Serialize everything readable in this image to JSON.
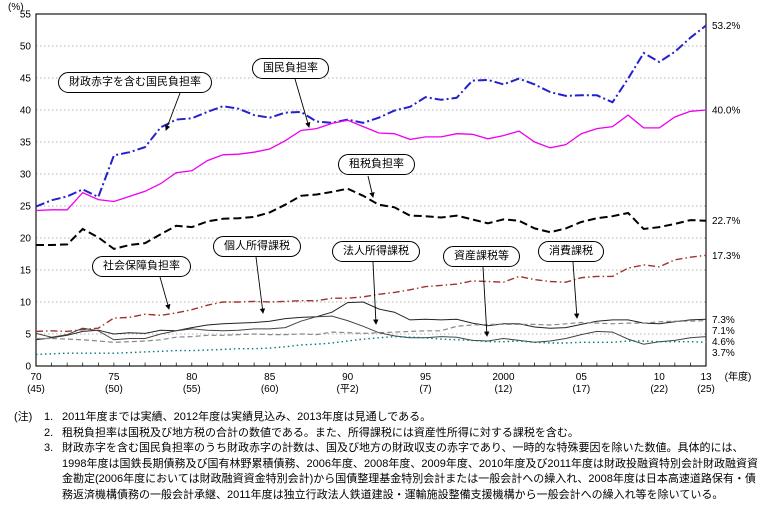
{
  "chart": {
    "percent_label": "(%)",
    "year_unit": "(年度)",
    "x_ticks": [
      {
        "year": 1970,
        "top": "70",
        "bottom": "(45)"
      },
      {
        "year": 1975,
        "top": "75",
        "bottom": "(50)"
      },
      {
        "year": 1980,
        "top": "80",
        "bottom": "(55)"
      },
      {
        "year": 1985,
        "top": "85",
        "bottom": "(60)"
      },
      {
        "year": 1990,
        "top": "90",
        "bottom": "(平2)"
      },
      {
        "year": 1995,
        "top": "95",
        "bottom": "(7)"
      },
      {
        "year": 2000,
        "top": "2000",
        "bottom": "(12)"
      },
      {
        "year": 2005,
        "top": "05",
        "bottom": "(17)"
      },
      {
        "year": 2010,
        "top": "10",
        "bottom": "(22)"
      },
      {
        "year": 2013,
        "top": "13",
        "bottom": "(25)"
      }
    ]
  },
  "chart_data": {
    "type": "line",
    "title": "",
    "xlabel": "(年度)",
    "ylabel": "(%)",
    "ylim": [
      0,
      55
    ],
    "grid": true,
    "x": [
      1970,
      1971,
      1972,
      1973,
      1974,
      1975,
      1976,
      1977,
      1978,
      1979,
      1980,
      1981,
      1982,
      1983,
      1984,
      1985,
      1986,
      1987,
      1988,
      1989,
      1990,
      1991,
      1992,
      1993,
      1994,
      1995,
      1996,
      1997,
      1998,
      1999,
      2000,
      2001,
      2002,
      2003,
      2004,
      2005,
      2006,
      2007,
      2008,
      2009,
      2010,
      2011,
      2012,
      2013
    ],
    "series": [
      {
        "name": "財政赤字を含む国民負担率",
        "end_label": "53.2%",
        "color": "#2222cc",
        "width": 2,
        "dash": "9 3 2 3",
        "values": [
          24.9,
          25.9,
          26.5,
          27.6,
          26.4,
          32.9,
          33.4,
          34.2,
          37.3,
          38.5,
          38.7,
          39.7,
          40.6,
          40.2,
          39.2,
          38.8,
          39.6,
          39.7,
          38.2,
          38.0,
          38.5,
          38.0,
          38.8,
          39.9,
          40.5,
          42.0,
          41.6,
          41.9,
          44.6,
          44.7,
          44.0,
          44.9,
          44.0,
          42.8,
          42.2,
          42.3,
          42.3,
          41.2,
          44.9,
          48.9,
          47.5,
          49.1,
          51.3,
          53.2
        ]
      },
      {
        "name": "国民負担率",
        "end_label": "40.0%",
        "color": "#ee00ee",
        "width": 1.3,
        "dash": "",
        "values": [
          24.3,
          24.4,
          24.4,
          27.1,
          26.0,
          25.7,
          26.5,
          27.3,
          28.5,
          30.2,
          30.5,
          32.1,
          33.0,
          33.1,
          33.4,
          33.9,
          35.2,
          36.8,
          37.1,
          37.9,
          38.4,
          37.4,
          36.4,
          36.3,
          35.4,
          35.8,
          35.8,
          36.3,
          36.2,
          35.5,
          36.0,
          36.7,
          35.0,
          34.1,
          34.6,
          36.3,
          37.1,
          37.4,
          39.2,
          37.2,
          37.2,
          38.9,
          39.8,
          40.0
        ]
      },
      {
        "name": "租税負担率",
        "end_label": "22.7%",
        "color": "#000000",
        "width": 2,
        "dash": "8 4",
        "values": [
          18.9,
          18.9,
          19.0,
          21.4,
          20.1,
          18.3,
          18.9,
          19.2,
          20.6,
          21.9,
          21.7,
          22.6,
          23.0,
          23.1,
          23.3,
          24.0,
          25.2,
          26.6,
          26.8,
          27.2,
          27.7,
          26.6,
          25.2,
          24.8,
          23.5,
          23.4,
          23.2,
          23.5,
          22.9,
          22.3,
          22.9,
          22.7,
          21.5,
          20.9,
          21.5,
          22.5,
          23.1,
          23.4,
          23.9,
          21.4,
          21.7,
          22.2,
          22.8,
          22.7
        ]
      },
      {
        "name": "社会保障負担率",
        "end_label": "17.3%",
        "color": "#a0342c",
        "width": 1.4,
        "dash": "7 3 1.5 3",
        "values": [
          5.4,
          5.5,
          5.4,
          5.7,
          5.9,
          7.5,
          7.6,
          8.1,
          7.9,
          8.3,
          8.8,
          9.5,
          10.0,
          10.0,
          10.1,
          10.0,
          10.1,
          10.2,
          10.2,
          10.6,
          10.6,
          10.8,
          11.2,
          11.5,
          11.9,
          12.4,
          12.6,
          12.8,
          13.3,
          13.2,
          13.1,
          14.0,
          13.5,
          13.2,
          13.1,
          13.8,
          14.0,
          14.0,
          15.3,
          15.8,
          15.5,
          16.6,
          17.0,
          17.3
        ]
      },
      {
        "name": "個人所得課税",
        "end_label": "7.3%",
        "color": "#222222",
        "width": 1,
        "dash": "",
        "values": [
          4.1,
          4.4,
          4.8,
          5.4,
          5.6,
          5.0,
          5.2,
          5.1,
          5.6,
          5.5,
          6.0,
          6.4,
          6.6,
          6.7,
          6.8,
          7.0,
          7.4,
          7.6,
          7.7,
          8.4,
          9.9,
          10.0,
          8.9,
          8.4,
          7.2,
          7.3,
          7.2,
          7.3,
          6.7,
          6.3,
          6.6,
          6.6,
          6.1,
          5.9,
          6.0,
          6.5,
          7.0,
          7.2,
          7.2,
          6.7,
          6.6,
          6.9,
          7.2,
          7.3
        ]
      },
      {
        "name": "消費課税",
        "end_label": "7.1%",
        "color": "#888888",
        "width": 1.2,
        "dash": "5 3",
        "values": [
          4.3,
          4.3,
          4.2,
          4.1,
          3.9,
          3.7,
          3.8,
          3.9,
          4.1,
          4.5,
          4.6,
          4.8,
          4.8,
          4.9,
          5.0,
          4.9,
          4.9,
          5.0,
          4.9,
          5.3,
          5.2,
          5.1,
          5.2,
          5.3,
          5.4,
          5.5,
          5.5,
          6.2,
          6.4,
          6.5,
          6.5,
          6.5,
          6.5,
          6.4,
          6.6,
          6.8,
          6.7,
          6.6,
          6.7,
          6.7,
          6.9,
          7.0,
          7.0,
          7.1
        ]
      },
      {
        "name": "法人所得課税",
        "end_label": "4.6%",
        "color": "#444444",
        "width": 1,
        "dash": "",
        "values": [
          5.1,
          4.5,
          4.9,
          5.9,
          5.5,
          4.1,
          4.3,
          4.3,
          5.0,
          5.5,
          5.8,
          5.6,
          5.5,
          5.6,
          5.8,
          5.8,
          6.0,
          7.0,
          7.7,
          7.8,
          7.1,
          6.2,
          5.2,
          4.7,
          4.4,
          4.4,
          4.6,
          4.5,
          4.0,
          3.9,
          4.3,
          4.0,
          3.7,
          3.9,
          4.3,
          4.9,
          5.4,
          5.3,
          4.2,
          3.4,
          3.8,
          4.0,
          4.4,
          4.6
        ]
      },
      {
        "name": "資産課税等",
        "end_label": "3.7%",
        "color": "#007a7a",
        "width": 1.4,
        "dash": "1.5 3",
        "values": [
          1.8,
          1.9,
          2.0,
          2.0,
          2.0,
          2.0,
          2.1,
          2.2,
          2.3,
          2.4,
          2.4,
          2.5,
          2.6,
          2.7,
          2.7,
          2.8,
          3.0,
          3.3,
          3.4,
          3.6,
          3.9,
          4.2,
          4.4,
          4.6,
          4.5,
          4.4,
          4.2,
          4.1,
          4.0,
          3.8,
          3.8,
          3.9,
          3.7,
          3.6,
          3.6,
          3.7,
          3.7,
          3.7,
          3.9,
          3.9,
          3.8,
          3.8,
          3.8,
          3.7
        ]
      }
    ]
  },
  "notes": {
    "prefix": "(注)",
    "items": [
      {
        "num": "1.",
        "text": "2011年度までは実績、2012年度は実績見込み、2013年度は見通しである。"
      },
      {
        "num": "2.",
        "text": "租税負担率は国税及び地方税の合計の数値である。また、所得課税には資産性所得に対する課税を含む。"
      },
      {
        "num": "3.",
        "text": "財政赤字を含む国民負担率のうち財政赤字の計数は、国及び地方の財政収支の赤字であり、一時的な特殊要因を除いた数値。具体的には、1998年度は国鉄長期債務及び国有林野累積債務、2006年度、2008年度、2009年度、2010年度及び2011年度は財政投融資特別会計財政融資資金勘定(2006年度においては財政融資資金特別会計)から国債整理基金特別会計または一般会計への繰入れ、2008年度は日本高速道路保有・債務返済機構債務の一般会計承継、2011年度は独立行政法人鉄道建設・運輸施設整備支援機構から一般会計への繰入れ等を除いている。"
      }
    ]
  }
}
